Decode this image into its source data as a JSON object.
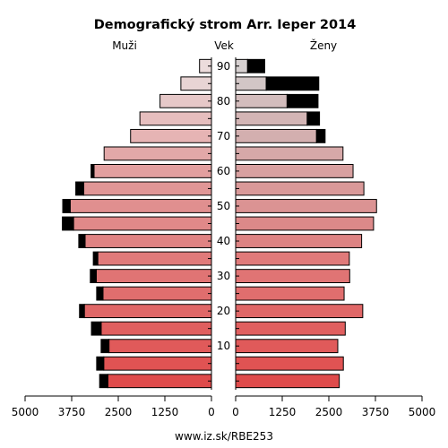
{
  "chart_data": {
    "type": "bar",
    "title": "Demografický strom Arr. Ieper 2014",
    "headers": {
      "male": "Muži",
      "age": "Vek",
      "female": "Ženy"
    },
    "footer": "www.iz.sk/RBE253",
    "x_ticks": [
      "5000",
      "3750",
      "2500",
      "1250",
      "0",
      "0",
      "1250",
      "2500",
      "3750",
      "5000"
    ],
    "x_range": [
      0,
      5000
    ],
    "age_groups": [
      "0-4",
      "5-9",
      "10-14",
      "15-19",
      "20-24",
      "25-29",
      "30-34",
      "35-39",
      "40-44",
      "45-49",
      "50-54",
      "55-59",
      "60-64",
      "65-69",
      "70-74",
      "75-79",
      "80-84",
      "85-89",
      "90+"
    ],
    "age_tick_labels": [
      {
        "label": "10",
        "group": 2
      },
      {
        "label": "20",
        "group": 4
      },
      {
        "label": "30",
        "group": 6
      },
      {
        "label": "40",
        "group": 8
      },
      {
        "label": "50",
        "group": 10
      },
      {
        "label": "60",
        "group": 12
      },
      {
        "label": "70",
        "group": 14
      },
      {
        "label": "80",
        "group": 16
      },
      {
        "label": "90",
        "group": 18
      }
    ],
    "series": [
      {
        "name": "Muži",
        "values": [
          2780,
          2890,
          2750,
          2960,
          3410,
          2910,
          3090,
          3050,
          3390,
          3700,
          3790,
          3430,
          3150,
          2880,
          2170,
          1920,
          1380,
          820,
          320
        ],
        "excess": [
          220,
          190,
          210,
          260,
          130,
          170,
          160,
          120,
          170,
          300,
          200,
          210,
          80,
          0,
          0,
          0,
          0,
          0,
          0
        ],
        "excess_side": [
          "outer",
          "outer",
          "outer",
          "outer",
          "outer",
          "outer",
          "outer",
          "outer",
          "outer",
          "outer",
          "outer",
          "outer",
          "outer",
          "outer",
          "outer",
          "outer",
          "outer",
          "outer",
          "outer"
        ]
      },
      {
        "name": "Ženy",
        "values": [
          2780,
          2890,
          2740,
          2940,
          3410,
          2910,
          3060,
          3050,
          3380,
          3700,
          3780,
          3440,
          3150,
          2880,
          2170,
          1920,
          1380,
          820,
          320
        ],
        "excess": [
          0,
          0,
          0,
          0,
          0,
          0,
          0,
          0,
          0,
          0,
          0,
          0,
          0,
          0,
          230,
          330,
          830,
          1410,
          460
        ],
        "excess_side": [
          "outer",
          "outer",
          "outer",
          "outer",
          "outer",
          "outer",
          "outer",
          "outer",
          "outer",
          "outer",
          "outer",
          "outer",
          "outer",
          "outer",
          "outer",
          "outer",
          "outer",
          "outer",
          "outer"
        ]
      }
    ],
    "colors": [
      "#df4b4b",
      "#e05353",
      "#e05a5a",
      "#e05f5f",
      "#e06767",
      "#e06e6e",
      "#e07474",
      "#e07a7a",
      "#e08383",
      "#e08989",
      "#e08f8f",
      "#e09696",
      "#e29f9f",
      "#e2a8a8",
      "#e6b4b4",
      "#e6bebe",
      "#e6c8c8",
      "#e8d4d4",
      "#ecdcdc"
    ],
    "female_colors": [
      "#df4b4b",
      "#e05353",
      "#e05a5a",
      "#e05f5f",
      "#e06767",
      "#e06e6e",
      "#e07474",
      "#e07a7a",
      "#dd8383",
      "#dc8989",
      "#db9393",
      "#d99999",
      "#d8a0a0",
      "#d6a8a8",
      "#d3afaf",
      "#d3b5b5",
      "#d3bdbd",
      "#d2c6c6",
      "#d6d0d0"
    ]
  }
}
